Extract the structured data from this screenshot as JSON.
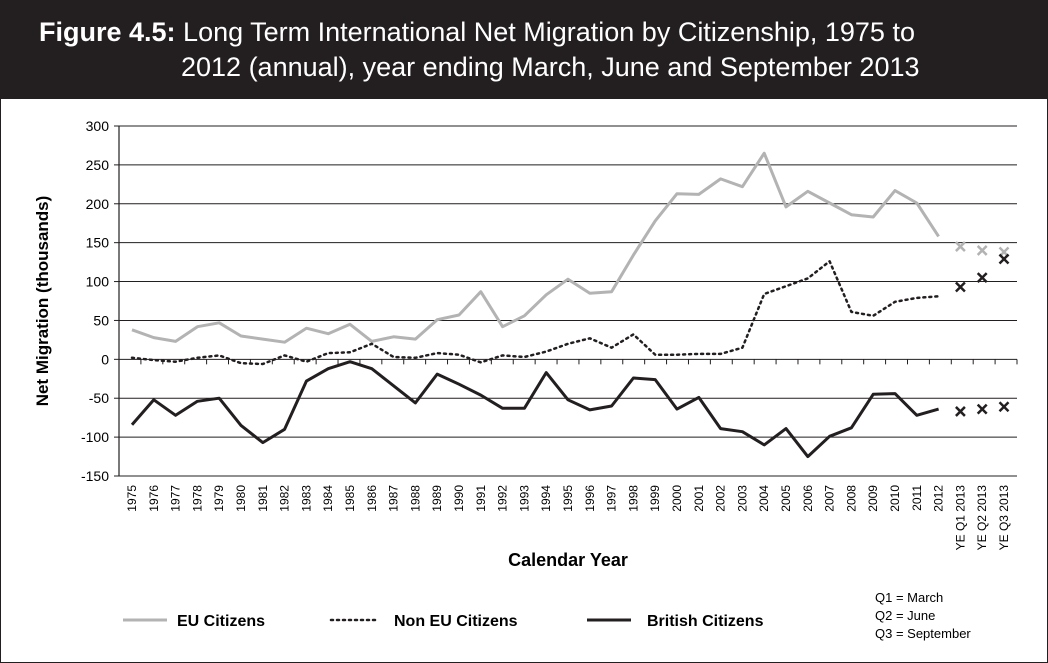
{
  "header": {
    "title_prefix": "Figure 4.5:",
    "title_line1": "Long Term International Net Migration by Citizenship, 1975 to",
    "title_line2": "2012 (annual), year ending March, June and September 2013"
  },
  "notes": [
    "Q1 = March",
    "Q2 = June",
    "Q3 = September"
  ],
  "colors": {
    "eu": "#b3b3b3",
    "non_eu": "#231f20",
    "british": "#231f20",
    "header_bg": "#231f20"
  },
  "chart_data": {
    "type": "line",
    "xlabel": "Calendar Year",
    "ylabel": "Net Migration (thousands)",
    "ylim": [
      -150,
      300
    ],
    "yticks": [
      300,
      250,
      200,
      150,
      100,
      50,
      0,
      -50,
      -100,
      -150
    ],
    "grid": true,
    "legend_position": "bottom",
    "categories": [
      "1975",
      "1976",
      "1977",
      "1978",
      "1979",
      "1980",
      "1981",
      "1982",
      "1983",
      "1984",
      "1985",
      "1986",
      "1987",
      "1988",
      "1989",
      "1990",
      "1991",
      "1992",
      "1993",
      "1994",
      "1995",
      "1996",
      "1997",
      "1998",
      "1999",
      "2000",
      "2001",
      "2002",
      "2003",
      "2004",
      "2005",
      "2006",
      "2007",
      "2008",
      "2009",
      "2010",
      "2011",
      "2012",
      "YE Q1 2013",
      "YE Q2 2013",
      "YE Q3 2013"
    ],
    "series": [
      {
        "name": "EU Citizens",
        "style": "solid-grey",
        "values": [
          38,
          28,
          23,
          42,
          47,
          30,
          26,
          22,
          40,
          33,
          45,
          23,
          29,
          26,
          51,
          57,
          87,
          42,
          56,
          83,
          103,
          85,
          87,
          134,
          178,
          213,
          212,
          232,
          222,
          265,
          196,
          216,
          201,
          186,
          183,
          217,
          201,
          158,
          null,
          null,
          null
        ],
        "quarterly": [
          145,
          140,
          138
        ]
      },
      {
        "name": "Non EU Citizens",
        "style": "dotted-black",
        "values": [
          2,
          -1,
          -3,
          2,
          5,
          -5,
          -6,
          5,
          -3,
          8,
          9,
          20,
          3,
          2,
          8,
          6,
          -4,
          5,
          3,
          10,
          20,
          27,
          15,
          32,
          6,
          6,
          7,
          7,
          15,
          84,
          94,
          104,
          126,
          61,
          56,
          74,
          79,
          81,
          null,
          null,
          null
        ],
        "quarterly": [
          93,
          105,
          129
        ]
      },
      {
        "name": "British Citizens",
        "style": "solid-black",
        "values": [
          -84,
          -52,
          -72,
          -54,
          -50,
          -85,
          -107,
          -90,
          -28,
          -12,
          -3,
          -12,
          -34,
          -56,
          -19,
          -32,
          -46,
          -63,
          -63,
          -17,
          -52,
          -65,
          -60,
          -24,
          -26,
          -64,
          -49,
          -89,
          -93,
          -110,
          -89,
          -125,
          -99,
          -88,
          -45,
          -44,
          -72,
          -64,
          null,
          null,
          null
        ],
        "quarterly": [
          -67,
          -64,
          -61
        ]
      }
    ]
  }
}
